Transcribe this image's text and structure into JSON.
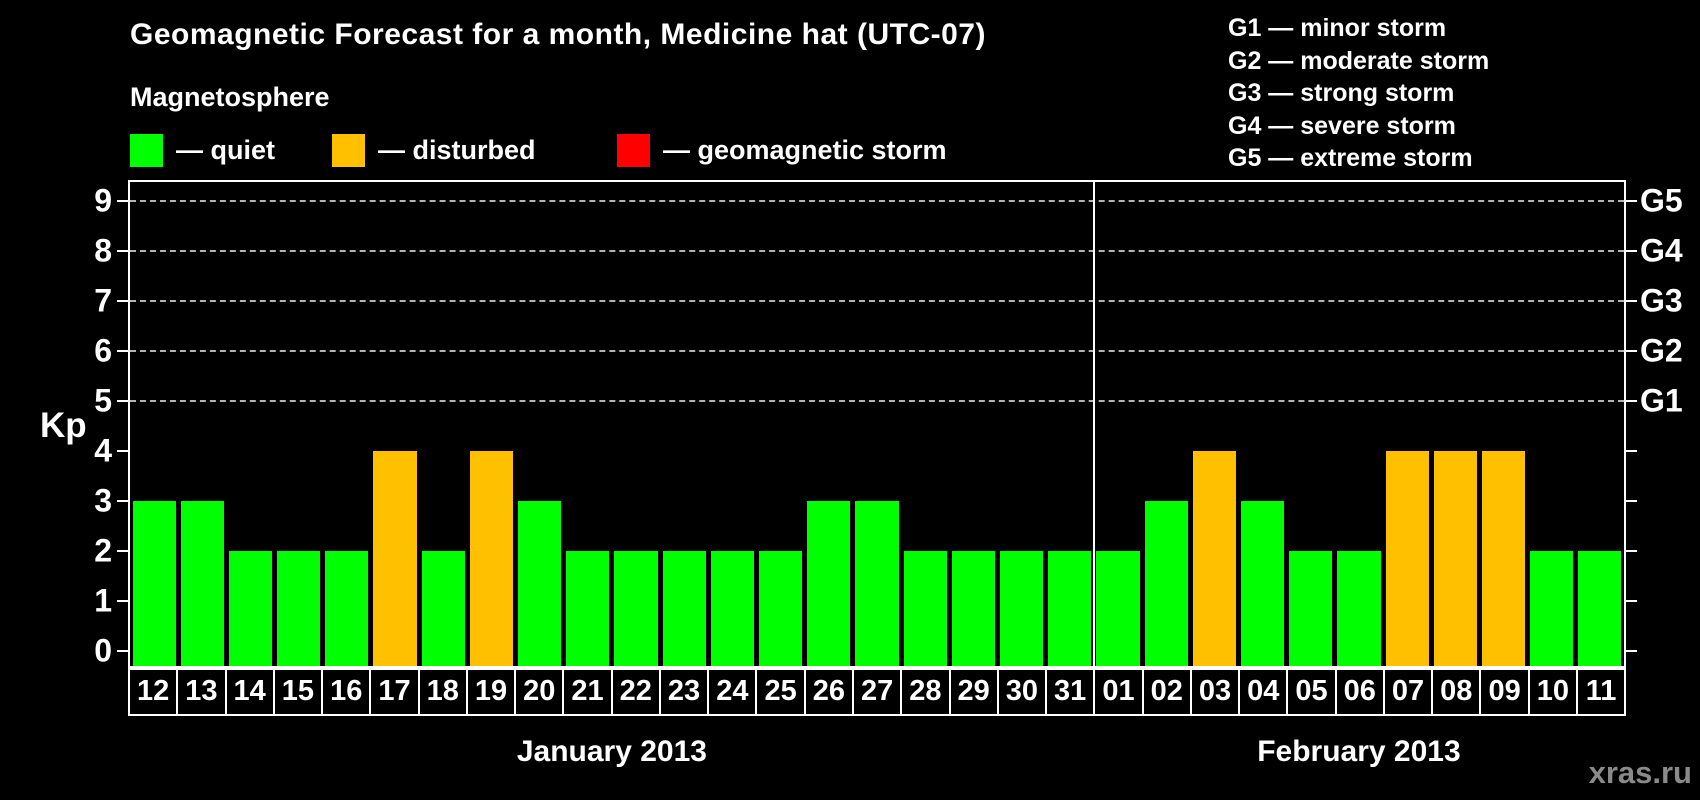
{
  "title": "Geomagnetic Forecast for a month, Medicine hat (UTC-07)",
  "watermark": "xras.ru",
  "legend": {
    "title": "Magnetosphere",
    "items": [
      {
        "key": "quiet",
        "label": "— quiet",
        "color": "#00ff00"
      },
      {
        "key": "disturbed",
        "label": "— disturbed",
        "color": "#ffc000"
      },
      {
        "key": "storm",
        "label": "— geomagnetic storm",
        "color": "#ff0000"
      }
    ]
  },
  "g_scale_legend": [
    "G1 — minor storm",
    "G2 — moderate storm",
    "G3 — strong storm",
    "G4 — severe storm",
    "G5 — extreme storm"
  ],
  "chart_data": {
    "type": "bar",
    "title": "Geomagnetic Forecast for a month, Medicine hat (UTC-07)",
    "ylabel": "Kp",
    "ylim": [
      0,
      9
    ],
    "yticks": [
      0,
      1,
      2,
      3,
      4,
      5,
      6,
      7,
      8,
      9
    ],
    "gridlines_at": [
      5,
      6,
      7,
      8,
      9
    ],
    "grid": "dashed horizontal at storm levels only",
    "right_scale": [
      {
        "kp": 5,
        "label": "G1"
      },
      {
        "kp": 6,
        "label": "G2"
      },
      {
        "kp": 7,
        "label": "G3"
      },
      {
        "kp": 8,
        "label": "G4"
      },
      {
        "kp": 9,
        "label": "G5"
      }
    ],
    "status_colors": {
      "quiet": "#00ff00",
      "disturbed": "#ffc000",
      "storm": "#ff0000"
    },
    "months": [
      {
        "label": "January 2013",
        "days": [
          "12",
          "13",
          "14",
          "15",
          "16",
          "17",
          "18",
          "19",
          "20",
          "21",
          "22",
          "23",
          "24",
          "25",
          "26",
          "27",
          "28",
          "29",
          "30",
          "31"
        ],
        "values": [
          3,
          3,
          2,
          2,
          2,
          4,
          2,
          4,
          3,
          2,
          2,
          2,
          2,
          2,
          3,
          3,
          2,
          2,
          2,
          2
        ],
        "status": [
          "quiet",
          "quiet",
          "quiet",
          "quiet",
          "quiet",
          "disturbed",
          "quiet",
          "disturbed",
          "quiet",
          "quiet",
          "quiet",
          "quiet",
          "quiet",
          "quiet",
          "quiet",
          "quiet",
          "quiet",
          "quiet",
          "quiet",
          "quiet"
        ]
      },
      {
        "label": "February 2013",
        "days": [
          "01",
          "02",
          "03",
          "04",
          "05",
          "06",
          "07",
          "08",
          "09",
          "10",
          "11"
        ],
        "values": [
          2,
          3,
          4,
          3,
          2,
          2,
          4,
          4,
          4,
          2,
          2
        ],
        "status": [
          "quiet",
          "quiet",
          "disturbed",
          "quiet",
          "quiet",
          "quiet",
          "disturbed",
          "disturbed",
          "disturbed",
          "quiet",
          "quiet"
        ]
      }
    ]
  }
}
